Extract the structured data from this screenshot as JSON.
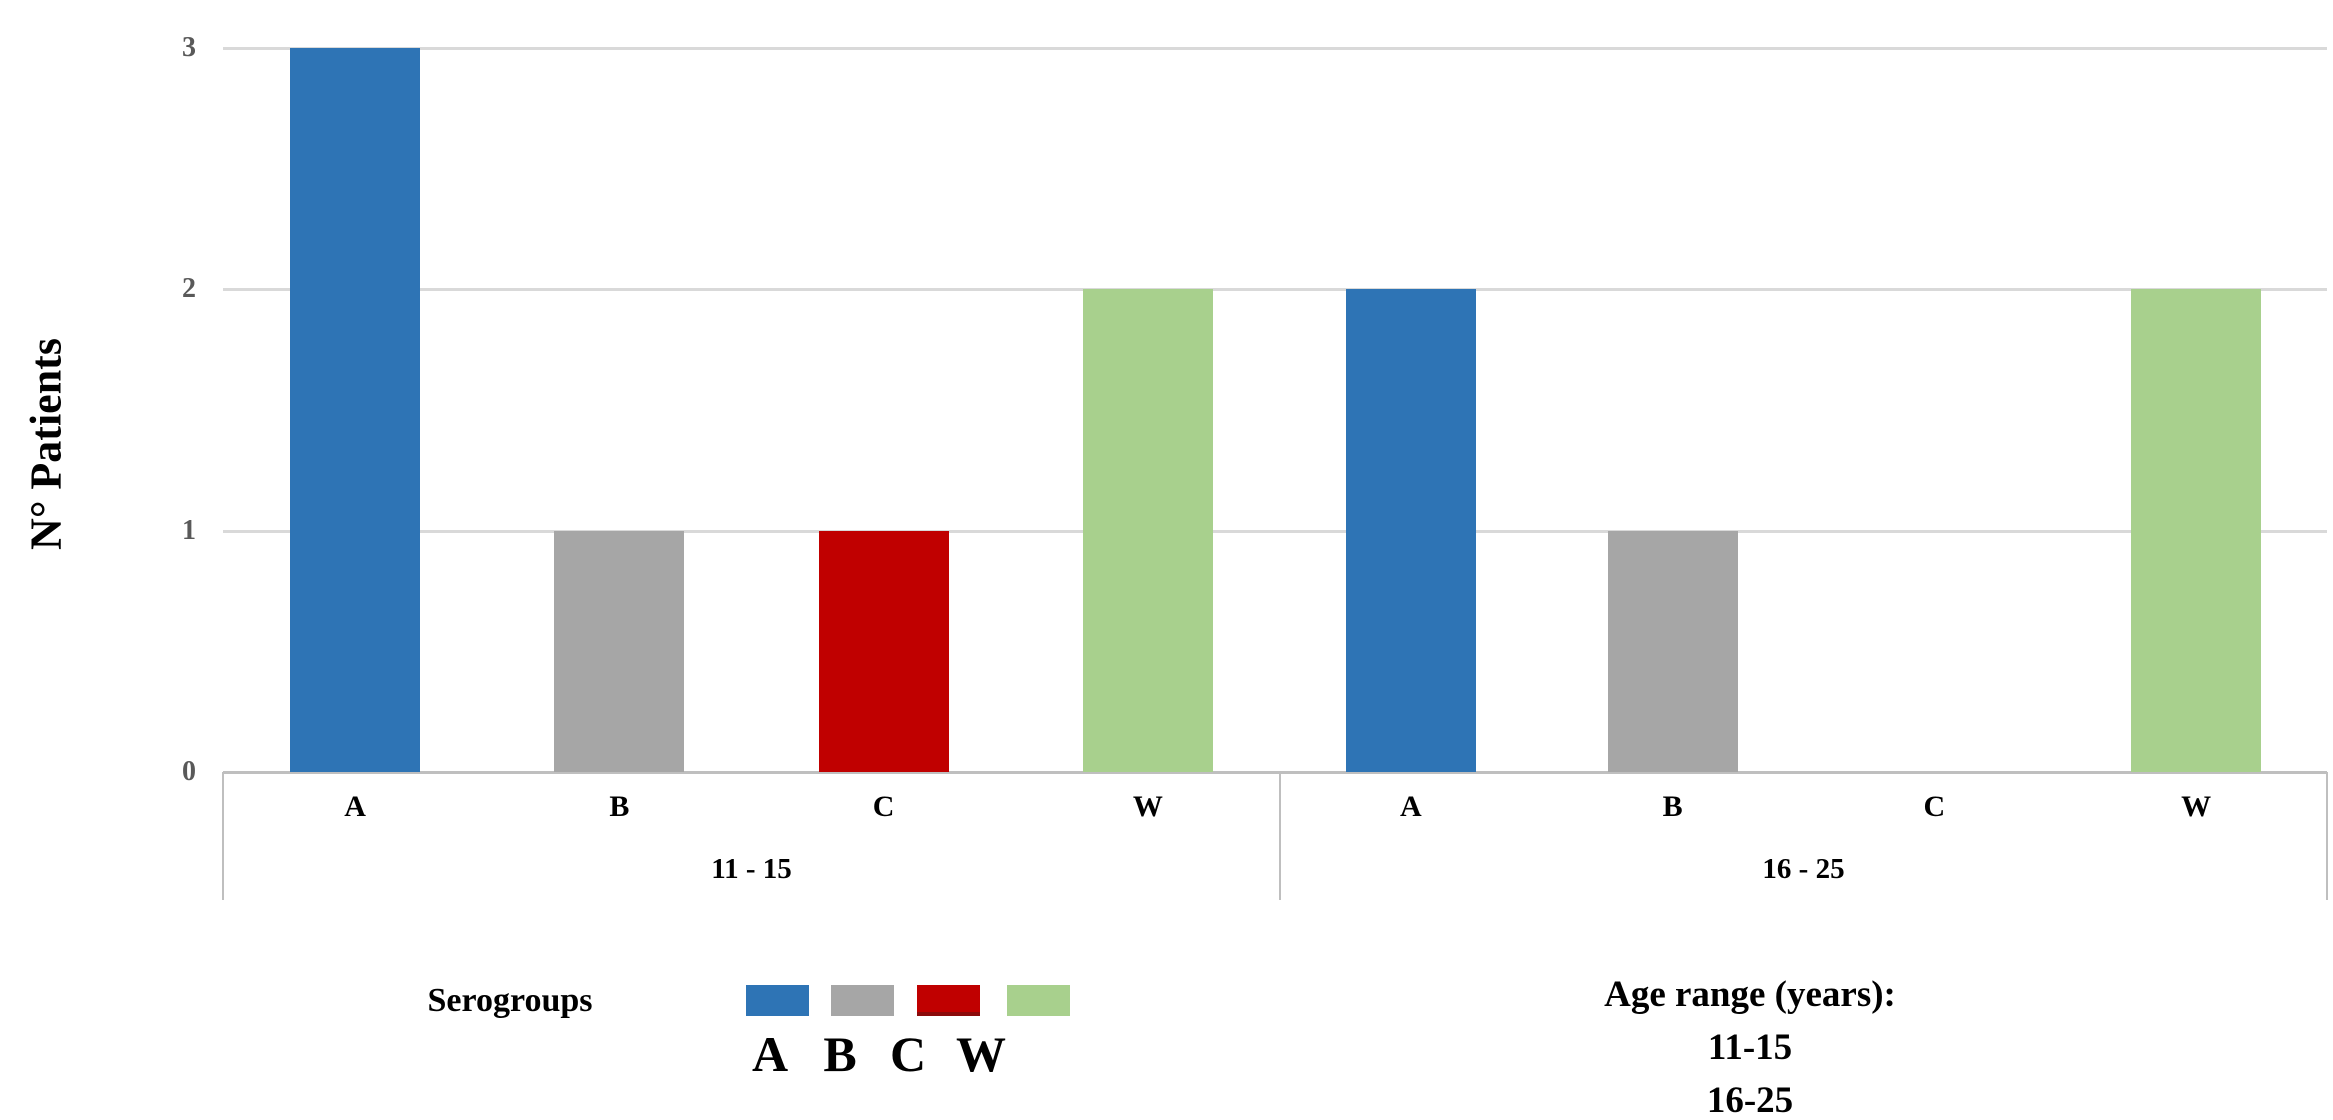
{
  "chart_data": {
    "type": "bar",
    "title": "",
    "xlabel": "",
    "ylabel": "N° Patients",
    "ylim": [
      0,
      3
    ],
    "yticks": [
      0,
      1,
      2,
      3
    ],
    "grid": true,
    "legend_position": "bottom-left",
    "categories": [
      "A",
      "B",
      "C",
      "W"
    ],
    "groups": [
      {
        "label": "11 - 15",
        "values": [
          3,
          1,
          1,
          2
        ]
      },
      {
        "label": "16 - 25",
        "values": [
          2,
          1,
          0,
          2
        ]
      }
    ],
    "series_colors": {
      "A": "#2E74B5",
      "B": "#A6A6A6",
      "C": "#C00000",
      "W": "#A8D08D"
    }
  },
  "legend": {
    "title": "Serogroups",
    "entries": [
      {
        "label": "A",
        "color": "#2E74B5"
      },
      {
        "label": "B",
        "color": "#A6A6A6"
      },
      {
        "label": "C",
        "color": "#C00000"
      },
      {
        "label": "W",
        "color": "#A8D08D"
      }
    ]
  },
  "annotation": {
    "line1": "Age range (years):",
    "line2": "11-15",
    "line3": "16-25"
  },
  "colors": {
    "gridline": "#D9D9D9",
    "axis": "#BFBFBF",
    "tick_text": "#595959",
    "text": "#000000"
  }
}
